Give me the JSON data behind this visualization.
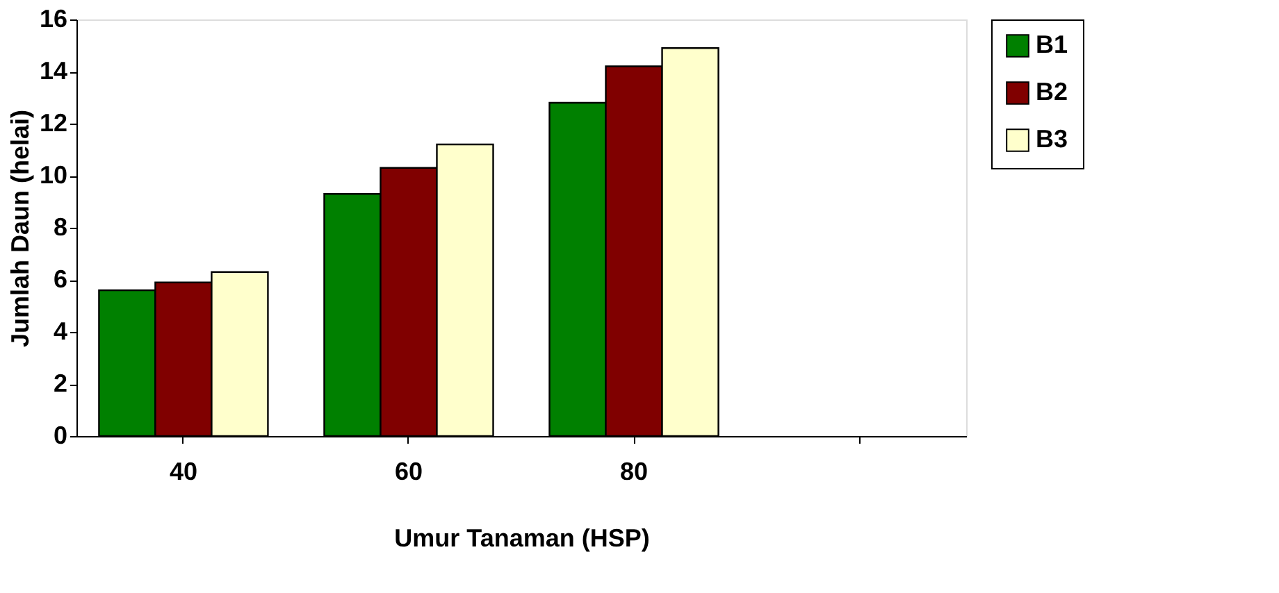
{
  "chart_data": {
    "type": "bar",
    "xlabel": "Umur Tanaman (HSP)",
    "ylabel": "Jumlah Daun (helai)",
    "categories": [
      "40",
      "60",
      "80",
      null
    ],
    "series": [
      {
        "name": "B1",
        "color": "#008000",
        "values": [
          5.6,
          9.3,
          12.8,
          null
        ]
      },
      {
        "name": "B2",
        "color": "#800000",
        "values": [
          5.9,
          10.3,
          14.2,
          null
        ]
      },
      {
        "name": "B3",
        "color": "#ffffcc",
        "values": [
          6.3,
          11.2,
          14.9,
          null
        ]
      }
    ],
    "ylim": [
      0,
      16
    ],
    "yticks": [
      0,
      2,
      4,
      6,
      8,
      10,
      12,
      14,
      16
    ],
    "grid": false,
    "legend": "right"
  }
}
